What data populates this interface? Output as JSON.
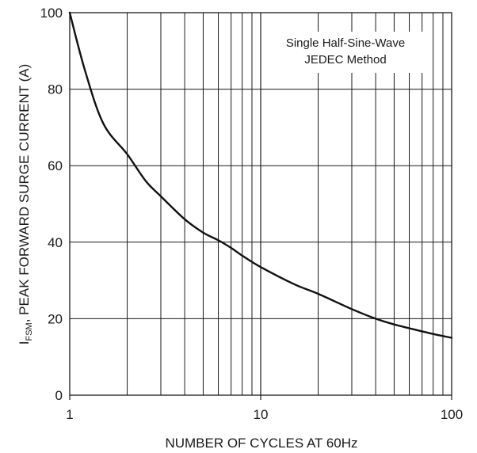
{
  "chart_data": {
    "type": "line",
    "xscale": "log",
    "xlim": [
      1,
      100
    ],
    "ylim": [
      0,
      100
    ],
    "grid": true,
    "xlabel": "NUMBER OF CYCLES AT 60Hz",
    "ylabel": {
      "main": "I",
      "subscript": "FSM",
      "rest": ", PEAK FORWARD SURGE CURRENT (A)"
    },
    "xticks": [
      1,
      10,
      100
    ],
    "xtick_labels": [
      "1",
      "10",
      "100"
    ],
    "yticks": [
      0,
      20,
      40,
      60,
      80,
      100
    ],
    "ytick_labels": [
      "0",
      "20",
      "40",
      "60",
      "80",
      "100"
    ],
    "annotation": [
      "Single Half-Sine-Wave",
      "JEDEC Method"
    ],
    "legend_placement": "top-right",
    "series": [
      {
        "x": [
          1,
          1.2,
          1.5,
          2,
          2.5,
          3,
          4,
          5,
          6,
          7,
          8,
          10,
          15,
          20,
          30,
          40,
          50,
          60,
          80,
          100
        ],
        "values": [
          100,
          85,
          71,
          63,
          56,
          52,
          46,
          42.5,
          40.5,
          38.5,
          36.5,
          33.5,
          29,
          26.5,
          22.5,
          20,
          18.5,
          17.5,
          16,
          15
        ]
      }
    ],
    "line_color": "#111111",
    "grid_color": "#1a1a1a"
  }
}
